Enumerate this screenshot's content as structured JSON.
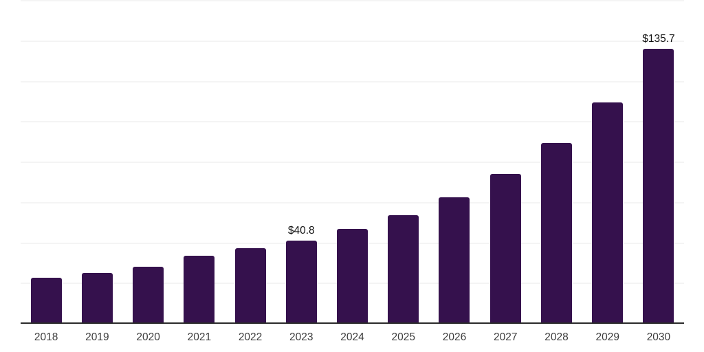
{
  "chart_data": {
    "type": "bar",
    "title": "",
    "xlabel": "",
    "ylabel": "",
    "categories": [
      "2018",
      "2019",
      "2020",
      "2021",
      "2022",
      "2023",
      "2024",
      "2025",
      "2026",
      "2027",
      "2028",
      "2029",
      "2030"
    ],
    "values": [
      22.4,
      24.8,
      27.9,
      33.5,
      37.0,
      40.8,
      46.5,
      53.3,
      62.3,
      73.8,
      89.2,
      109.2,
      135.7
    ],
    "data_labels": {
      "2023": "$40.8",
      "2030": "$135.7"
    },
    "ylim": [
      0,
      160
    ],
    "gridline_step": 20,
    "grid": true,
    "legend": false,
    "y_axis_labels_visible": false,
    "bar_color": "#35114d",
    "axis_line_color": "#2a2a2a",
    "gridline_color": "#f4f4f4",
    "tick_label_color": "#3c3c3c",
    "value_label_color": "#111111",
    "background_color": "#ffffff"
  }
}
